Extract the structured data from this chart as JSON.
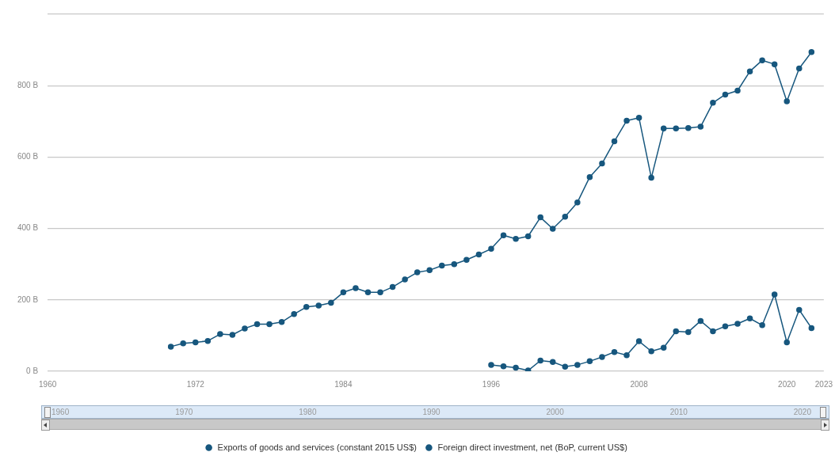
{
  "chart_data": {
    "type": "line",
    "series": [
      {
        "name": "Exports of goods and services (constant 2015 US$)",
        "color": "#17577e",
        "x": [
          1970,
          1971,
          1972,
          1973,
          1974,
          1975,
          1976,
          1977,
          1978,
          1979,
          1980,
          1981,
          1982,
          1983,
          1984,
          1985,
          1986,
          1987,
          1988,
          1989,
          1990,
          1991,
          1992,
          1993,
          1994,
          1995,
          1996,
          1997,
          1998,
          1999,
          2000,
          2001,
          2002,
          2003,
          2004,
          2005,
          2006,
          2007,
          2008,
          2009,
          2010,
          2011,
          2012,
          2013,
          2014,
          2015,
          2016,
          2017,
          2018,
          2019,
          2020,
          2021,
          2022
        ],
        "values": [
          69,
          78,
          81,
          85,
          104,
          102,
          120,
          132,
          132,
          138,
          160,
          180,
          184,
          192,
          221,
          233,
          221,
          221,
          236,
          257,
          277,
          283,
          296,
          300,
          312,
          327,
          343,
          381,
          371,
          378,
          431,
          399,
          433,
          473,
          544,
          582,
          644,
          702,
          710,
          542,
          680,
          680,
          681,
          685,
          752,
          775,
          786,
          840,
          871,
          860,
          756,
          848,
          894
        ]
      },
      {
        "name": "Foreign direct investment, net (BoP, current US$)",
        "color": "#17577e",
        "x": [
          1996,
          1997,
          1998,
          1999,
          2000,
          2001,
          2002,
          2003,
          2004,
          2005,
          2006,
          2007,
          2008,
          2009,
          2010,
          2011,
          2012,
          2013,
          2014,
          2015,
          2016,
          2017,
          2018,
          2019,
          2020,
          2021,
          2022
        ],
        "values": [
          18,
          14,
          10,
          2,
          30,
          26,
          13,
          18,
          28,
          40,
          54,
          45,
          84,
          56,
          66,
          112,
          110,
          141,
          112,
          126,
          133,
          148,
          129,
          215,
          81,
          172,
          121
        ]
      }
    ],
    "xlim": [
      1960,
      2023
    ],
    "xticks": [
      1960,
      1972,
      1984,
      1996,
      2008,
      2020,
      2023
    ],
    "ylim": [
      0,
      1000
    ],
    "yticks": [
      {
        "value": 0,
        "label": "0 B"
      },
      {
        "value": 200,
        "label": "200 B"
      },
      {
        "value": 400,
        "label": "400 B"
      },
      {
        "value": 600,
        "label": "600 B"
      },
      {
        "value": 800,
        "label": "800 B"
      },
      {
        "value": 1000,
        "label": null
      }
    ],
    "grid": "y",
    "legend": "bottom",
    "marker": "circle",
    "line_style": "solid",
    "annotations": [
      "1960",
      "1970",
      "1980",
      "1990",
      "2000",
      "2010",
      "2020"
    ]
  }
}
